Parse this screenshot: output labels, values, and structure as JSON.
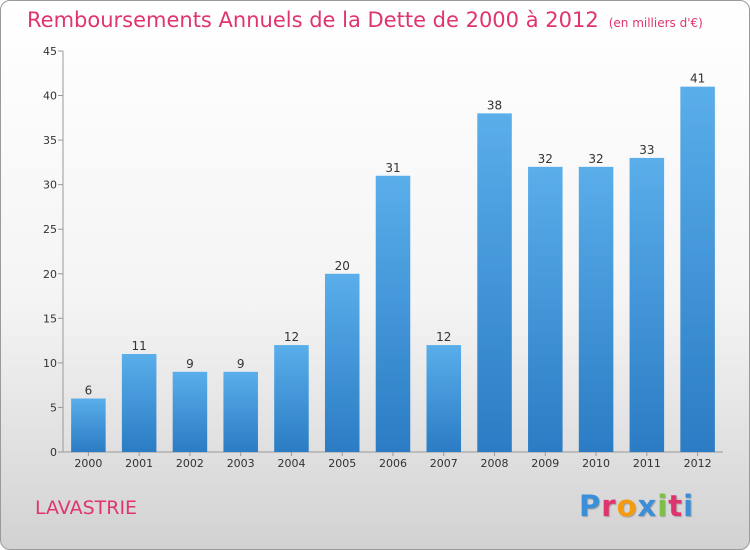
{
  "header": {
    "title": "Remboursements Annuels de la Dette de 2000 à 2012",
    "subtitle": "(en milliers d'€)"
  },
  "footer": {
    "commune": "LAVASTRIE",
    "logo_text": "Proxiti",
    "logo_colors": [
      "#3a8fd8",
      "#e0346f",
      "#f39c12",
      "#3a8fd8",
      "#7cc142",
      "#e0346f",
      "#3a8fd8"
    ]
  },
  "chart_data": {
    "type": "bar",
    "title": "Remboursements Annuels de la Dette de 2000 à 2012",
    "subtitle": "(en milliers d'€)",
    "xlabel": "",
    "ylabel": "",
    "categories": [
      "2000",
      "2001",
      "2002",
      "2003",
      "2004",
      "2005",
      "2006",
      "2007",
      "2008",
      "2009",
      "2010",
      "2011",
      "2012"
    ],
    "values": [
      6,
      11,
      9,
      9,
      12,
      20,
      31,
      12,
      38,
      32,
      32,
      33,
      41
    ],
    "ylim": [
      0,
      45
    ],
    "yticks": [
      0,
      5,
      10,
      15,
      20,
      25,
      30,
      35,
      40,
      45
    ],
    "grid": false,
    "legend": "none",
    "bar_color_top": "#5aaeea",
    "bar_color_bottom": "#2b7cc4"
  }
}
